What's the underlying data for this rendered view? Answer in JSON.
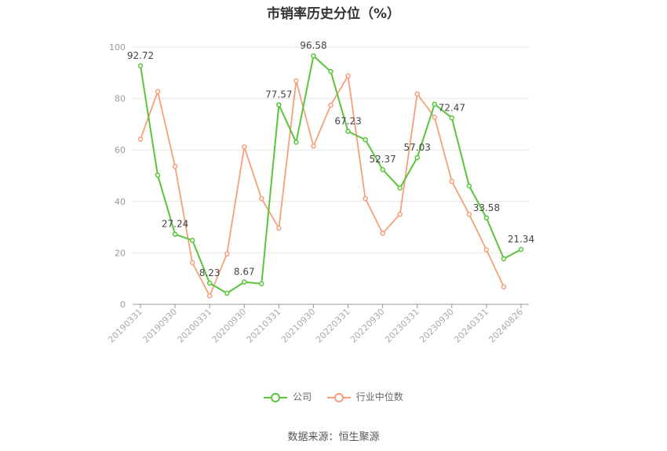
{
  "chart_data": {
    "type": "line",
    "title": "市销率历史分位（%）",
    "x_tick_labels": [
      "20190331",
      "20190930",
      "20200331",
      "20200930",
      "20210331",
      "20210930",
      "20220331",
      "20220930",
      "20230331",
      "20230930",
      "20240331",
      "20240826"
    ],
    "x": [
      "20190331",
      "20190630",
      "20190930",
      "20191231",
      "20200331",
      "20200630",
      "20200930",
      "20201231",
      "20210331",
      "20210630",
      "20210930",
      "20211231",
      "20220331",
      "20220630",
      "20220930",
      "20221231",
      "20230331",
      "20230630",
      "20230930",
      "20231231",
      "20240331",
      "20240630",
      "20240826"
    ],
    "ylim": [
      0,
      100
    ],
    "y_ticks": [
      0,
      20,
      40,
      60,
      80,
      100
    ],
    "grid": true,
    "legend_position": "bottom",
    "series": [
      {
        "name": "公司",
        "color": "#5ac43a",
        "values": [
          92.72,
          50.2,
          27.24,
          24.9,
          8.23,
          4.3,
          8.67,
          8.0,
          77.57,
          63.0,
          96.58,
          90.5,
          67.23,
          64.0,
          52.37,
          45.2,
          57.03,
          77.8,
          72.47,
          46.0,
          33.58,
          17.7,
          21.34
        ],
        "labels": {
          "0": "92.72",
          "2": "27.24",
          "4": "8.23",
          "6": "8.67",
          "8": "77.57",
          "10": "96.58",
          "12": "67.23",
          "14": "52.37",
          "16": "57.03",
          "18": "72.47",
          "20": "33.58",
          "22": "21.34"
        }
      },
      {
        "name": "行业中位数",
        "color": "#f5a07a",
        "values": [
          64.2,
          82.7,
          53.6,
          16.2,
          3.3,
          19.6,
          61.2,
          41.1,
          29.6,
          86.9,
          61.5,
          77.4,
          88.8,
          41.1,
          27.6,
          35.0,
          81.8,
          72.7,
          47.8,
          35.0,
          21.2,
          6.8,
          null
        ],
        "labels": {}
      }
    ]
  },
  "legend": {
    "company_label": "公司",
    "industry_label": "行业中位数"
  },
  "source_text": "数据来源：恒生聚源"
}
